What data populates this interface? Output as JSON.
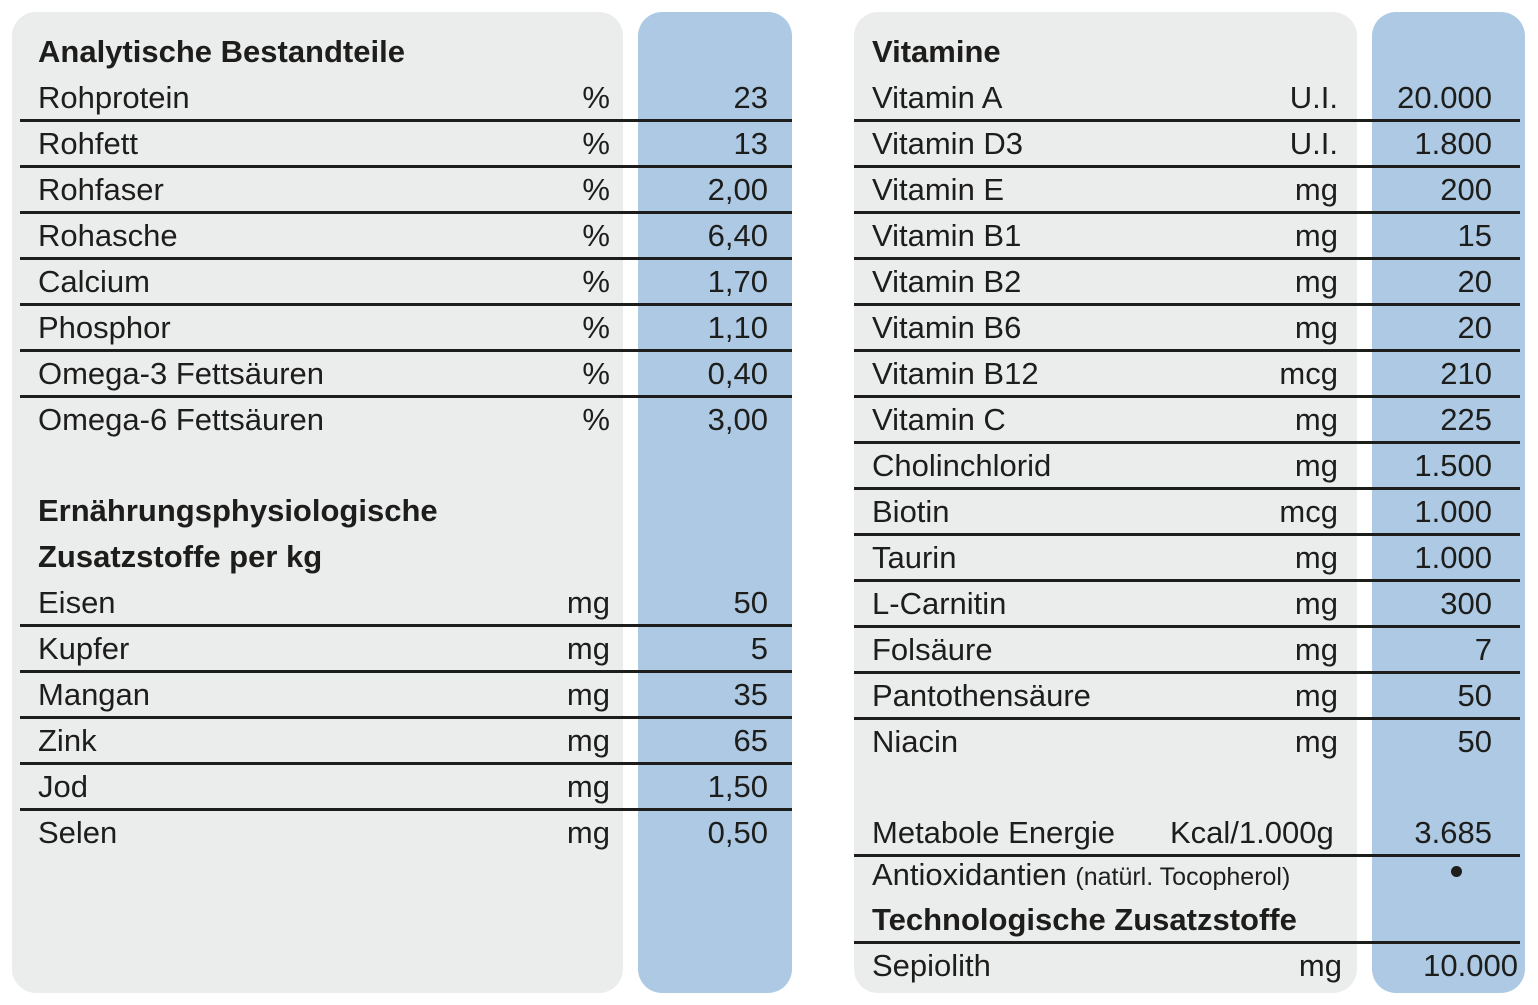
{
  "left": {
    "heading": "Analytische Bestandteile",
    "rows": [
      {
        "label": "Rohprotein",
        "unit": "%",
        "value": "23"
      },
      {
        "label": "Rohfett",
        "unit": "%",
        "value": "13"
      },
      {
        "label": "Rohfaser",
        "unit": "%",
        "value": "2,00"
      },
      {
        "label": "Rohasche",
        "unit": "%",
        "value": "6,40"
      },
      {
        "label": "Calcium",
        "unit": "%",
        "value": "1,70"
      },
      {
        "label": "Phosphor",
        "unit": "%",
        "value": "1,10"
      },
      {
        "label": "Omega-3 Fettsäuren",
        "unit": "%",
        "value": "0,40"
      },
      {
        "label": "Omega-6 Fettsäuren",
        "unit": "%",
        "value": "3,00"
      }
    ],
    "heading2_line1": "Ernährungsphysiologische",
    "heading2_line2": "Zusatzstoffe per kg",
    "rows2": [
      {
        "label": "Eisen",
        "unit": "mg",
        "value": "50"
      },
      {
        "label": "Kupfer",
        "unit": "mg",
        "value": "5"
      },
      {
        "label": "Mangan",
        "unit": "mg",
        "value": "35"
      },
      {
        "label": "Zink",
        "unit": "mg",
        "value": "65"
      },
      {
        "label": "Jod",
        "unit": "mg",
        "value": "1,50"
      },
      {
        "label": "Selen",
        "unit": "mg",
        "value": "0,50"
      }
    ]
  },
  "right": {
    "heading": "Vitamine",
    "rows": [
      {
        "label": "Vitamin A",
        "unit": "U.I.",
        "value": "20.000"
      },
      {
        "label": "Vitamin D3",
        "unit": "U.I.",
        "value": "1.800"
      },
      {
        "label": "Vitamin E",
        "unit": "mg",
        "value": "200"
      },
      {
        "label": "Vitamin B1",
        "unit": "mg",
        "value": "15"
      },
      {
        "label": "Vitamin B2",
        "unit": "mg",
        "value": "20"
      },
      {
        "label": "Vitamin B6",
        "unit": "mg",
        "value": "20"
      },
      {
        "label": "Vitamin B12",
        "unit": "mcg",
        "value": "210"
      },
      {
        "label": "Vitamin C",
        "unit": "mg",
        "value": "225"
      },
      {
        "label": "Cholinchlorid",
        "unit": "mg",
        "value": "1.500"
      },
      {
        "label": "Biotin",
        "unit": "mcg",
        "value": "1.000"
      },
      {
        "label": "Taurin",
        "unit": "mg",
        "value": "1.000"
      },
      {
        "label": "L-Carnitin",
        "unit": "mg",
        "value": "300"
      },
      {
        "label": "Folsäure",
        "unit": "mg",
        "value": "7"
      },
      {
        "label": "Pantothensäure",
        "unit": "mg",
        "value": "50"
      },
      {
        "label": "Niacin",
        "unit": "mg",
        "value": "50"
      }
    ],
    "energy": {
      "label": "Metabole Energie",
      "unit": "Kcal/1.000g",
      "value": "3.685"
    },
    "antioxidants": {
      "label": "Antioxidantien",
      "note": "(natürl. Tocopherol)"
    },
    "tech_heading": "Technologische Zusatzstoffe",
    "sepiolith": {
      "label": "Sepiolith",
      "unit": "mg",
      "value": "10.000"
    }
  }
}
